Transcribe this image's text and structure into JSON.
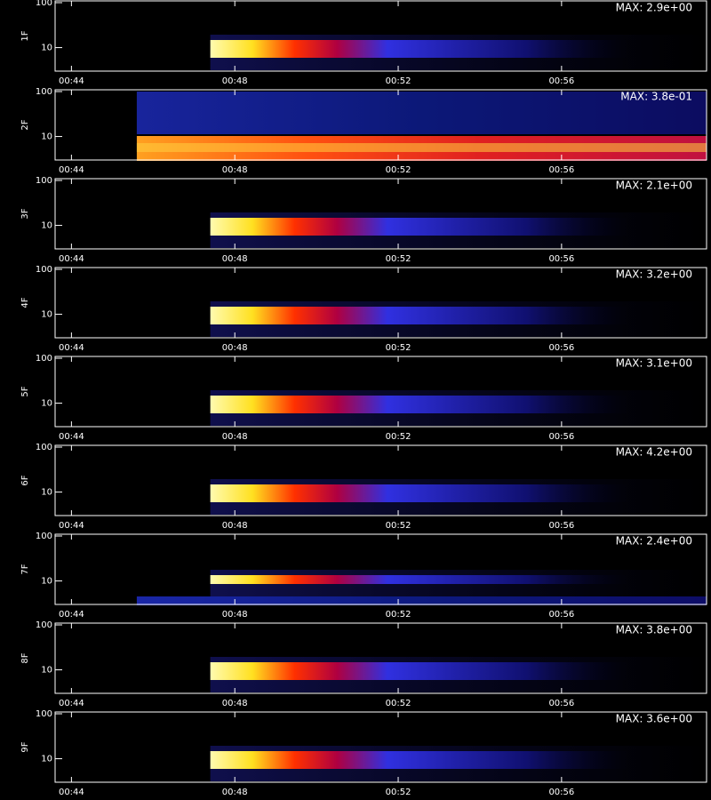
{
  "chart_data": [
    {
      "type": "heatmap",
      "ylabel": "1F",
      "annotation": "MAX: 2.9e+00",
      "log_y": true,
      "ylim": [
        3,
        100
      ],
      "yticks": [
        10,
        100
      ],
      "xlim": [
        43.6,
        59.55
      ],
      "xticks": [
        {
          "value": 44,
          "label": "00:44"
        },
        {
          "value": 48,
          "label": "00:48"
        },
        {
          "value": 52,
          "label": "00:52"
        },
        {
          "value": 56,
          "label": "00:56"
        }
      ]
    },
    {
      "type": "heatmap",
      "ylabel": "2F",
      "annotation": "MAX: 3.8e-01",
      "log_y": true,
      "ylim": [
        3,
        100
      ],
      "yticks": [
        10,
        100
      ],
      "xlim": [
        43.6,
        59.55
      ],
      "xticks": [
        {
          "value": 44,
          "label": "00:44"
        },
        {
          "value": 48,
          "label": "00:48"
        },
        {
          "value": 52,
          "label": "00:52"
        },
        {
          "value": 56,
          "label": "00:56"
        }
      ]
    },
    {
      "type": "heatmap",
      "ylabel": "3F",
      "annotation": "MAX: 2.1e+00",
      "log_y": true,
      "ylim": [
        3,
        100
      ],
      "yticks": [
        10,
        100
      ],
      "xlim": [
        43.6,
        59.55
      ],
      "xticks": [
        {
          "value": 44,
          "label": "00:44"
        },
        {
          "value": 48,
          "label": "00:48"
        },
        {
          "value": 52,
          "label": "00:52"
        },
        {
          "value": 56,
          "label": "00:56"
        }
      ]
    },
    {
      "type": "heatmap",
      "ylabel": "4F",
      "annotation": "MAX: 3.2e+00",
      "log_y": true,
      "ylim": [
        3,
        100
      ],
      "yticks": [
        10,
        100
      ],
      "xlim": [
        43.6,
        59.55
      ],
      "xticks": [
        {
          "value": 44,
          "label": "00:44"
        },
        {
          "value": 48,
          "label": "00:48"
        },
        {
          "value": 52,
          "label": "00:52"
        },
        {
          "value": 56,
          "label": "00:56"
        }
      ]
    },
    {
      "type": "heatmap",
      "ylabel": "5F",
      "annotation": "MAX: 3.1e+00",
      "log_y": true,
      "ylim": [
        3,
        100
      ],
      "yticks": [
        10,
        100
      ],
      "xlim": [
        43.6,
        59.55
      ],
      "xticks": [
        {
          "value": 44,
          "label": "00:44"
        },
        {
          "value": 48,
          "label": "00:48"
        },
        {
          "value": 52,
          "label": "00:52"
        },
        {
          "value": 56,
          "label": "00:56"
        }
      ]
    },
    {
      "type": "heatmap",
      "ylabel": "6F",
      "annotation": "MAX: 4.2e+00",
      "log_y": true,
      "ylim": [
        3,
        100
      ],
      "yticks": [
        10,
        100
      ],
      "xlim": [
        43.6,
        59.55
      ],
      "xticks": [
        {
          "value": 44,
          "label": "00:44"
        },
        {
          "value": 48,
          "label": "00:48"
        },
        {
          "value": 52,
          "label": "00:52"
        },
        {
          "value": 56,
          "label": "00:56"
        }
      ]
    },
    {
      "type": "heatmap",
      "ylabel": "7F",
      "annotation": "MAX: 2.4e+00",
      "log_y": true,
      "ylim": [
        3,
        100
      ],
      "yticks": [
        10,
        100
      ],
      "xlim": [
        43.6,
        59.55
      ],
      "xticks": [
        {
          "value": 44,
          "label": "00:44"
        },
        {
          "value": 48,
          "label": "00:48"
        },
        {
          "value": 52,
          "label": "00:52"
        },
        {
          "value": 56,
          "label": "00:56"
        }
      ]
    },
    {
      "type": "heatmap",
      "ylabel": "8F",
      "annotation": "MAX: 3.8e+00",
      "log_y": true,
      "ylim": [
        3,
        100
      ],
      "yticks": [
        10,
        100
      ],
      "xlim": [
        43.6,
        59.55
      ],
      "xticks": [
        {
          "value": 44,
          "label": "00:44"
        },
        {
          "value": 48,
          "label": "00:48"
        },
        {
          "value": 52,
          "label": "00:52"
        },
        {
          "value": 56,
          "label": "00:56"
        }
      ]
    },
    {
      "type": "heatmap",
      "ylabel": "9F",
      "annotation": "MAX: 3.6e+00",
      "log_y": true,
      "ylim": [
        3,
        100
      ],
      "yticks": [
        10,
        100
      ],
      "xlim": [
        43.6,
        59.55
      ],
      "xticks": [
        {
          "value": 44,
          "label": "00:44"
        },
        {
          "value": 48,
          "label": "00:48"
        },
        {
          "value": 52,
          "label": "00:52"
        },
        {
          "value": 56,
          "label": "00:56"
        }
      ]
    }
  ]
}
